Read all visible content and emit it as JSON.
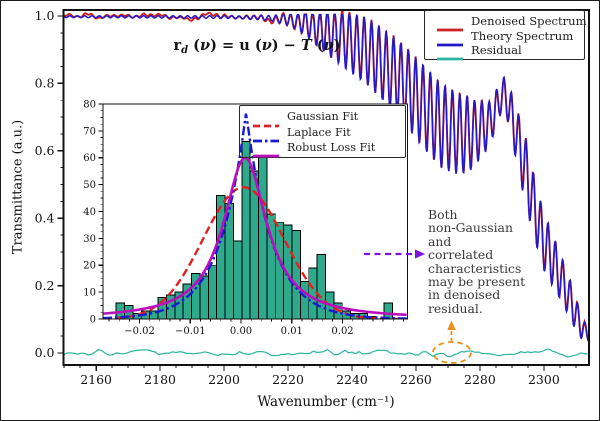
{
  "figure": {
    "background": "#ffffff",
    "border_color": "#1c1c1c"
  },
  "equation": {
    "tokens": [
      {
        "t": "r",
        "style": "bold"
      },
      {
        "t": "d",
        "style": "sub"
      },
      {
        "t": " (",
        "style": "plain"
      },
      {
        "t": "ν",
        "style": "italic"
      },
      {
        "t": ") = ",
        "style": "plain"
      },
      {
        "t": "u",
        "style": "bold"
      },
      {
        "t": " (",
        "style": "plain"
      },
      {
        "t": "ν",
        "style": "italic"
      },
      {
        "t": ") − ",
        "style": "plain"
      },
      {
        "t": "T",
        "style": "script"
      },
      {
        "t": " (",
        "style": "plain"
      },
      {
        "t": "ν",
        "style": "italic"
      },
      {
        "t": ")",
        "style": "plain"
      }
    ]
  },
  "annotation": {
    "lines": [
      "Both",
      "non-Gaussian",
      "and",
      "correlated",
      "characteristics",
      "may be present",
      "in denoised",
      "residual."
    ],
    "text_color": "#3a3a3a",
    "pointer_arrow_color": "#8012e0",
    "residual_arrow_color": "#e8901e",
    "ellipse_color": "#e8901e"
  },
  "chart_data": [
    {
      "id": "main-spectrum",
      "type": "line",
      "x_label": "Wavenumber (cm⁻¹)",
      "y_label": "Transmittance (a.u.)",
      "x_range": [
        2149.8,
        2314.1
      ],
      "y_range": [
        -0.0356,
        1.0178
      ],
      "grid": false,
      "x_major_ticks": [
        {
          "v": 2160,
          "label": "2160"
        },
        {
          "v": 2180,
          "label": "2180"
        },
        {
          "v": 2200,
          "label": "2200"
        },
        {
          "v": 2220,
          "label": "2220"
        },
        {
          "v": 2240,
          "label": "2240"
        },
        {
          "v": 2260,
          "label": "2260"
        },
        {
          "v": 2280,
          "label": "2280"
        },
        {
          "v": 2300,
          "label": "2300"
        }
      ],
      "x_minor_step": 5,
      "y_major_ticks": [
        {
          "v": 0,
          "label": "0.0"
        },
        {
          "v": 0.2,
          "label": "0.2"
        },
        {
          "v": 0.4,
          "label": "0.4"
        },
        {
          "v": 0.6,
          "label": "0.6"
        },
        {
          "v": 0.8,
          "label": "0.8"
        },
        {
          "v": 1,
          "label": "1.0"
        }
      ],
      "y_minor_step": 0.05,
      "legend": {
        "position": "upper-right",
        "items": [
          {
            "label": "Denoised Spectrum",
            "color": "#cc2222",
            "dash": "solid"
          },
          {
            "label": "Theory Spectrum",
            "color": "#2418c8",
            "dash": "solid"
          },
          {
            "label": "Residual",
            "color": "#2ab5a0",
            "dash": "solid"
          }
        ]
      },
      "series": {
        "theory": {
          "name": "Theory Spectrum",
          "color": "#2418c8",
          "width": 1.5,
          "period": 2.3,
          "peak_phase_x": 2287.5,
          "y_max_clamp": 1.004,
          "mean_keypoints": [
            [
              2149.8,
              0.998
            ],
            [
              2200,
              0.997
            ],
            [
              2212,
              0.995
            ],
            [
              2220,
              0.99
            ],
            [
              2226,
              0.978
            ],
            [
              2232,
              0.957
            ],
            [
              2238,
              0.928
            ],
            [
              2244,
              0.9
            ],
            [
              2250,
              0.855
            ],
            [
              2256,
              0.8
            ],
            [
              2262,
              0.735
            ],
            [
              2268,
              0.675
            ],
            [
              2273,
              0.65
            ],
            [
              2278,
              0.65
            ],
            [
              2283,
              0.68
            ],
            [
              2287.5,
              0.78
            ],
            [
              2290,
              0.7
            ],
            [
              2294,
              0.55
            ],
            [
              2297,
              0.43
            ],
            [
              2300,
              0.33
            ],
            [
              2303,
              0.27
            ],
            [
              2306,
              0.21
            ],
            [
              2309,
              0.14
            ],
            [
              2311.5,
              0.08
            ],
            [
              2314.1,
              0.05
            ]
          ],
          "amp_keypoints": [
            [
              2149.8,
              0.0025
            ],
            [
              2205,
              0.004
            ],
            [
              2215,
              0.008
            ],
            [
              2222,
              0.022
            ],
            [
              2228,
              0.05
            ],
            [
              2234,
              0.075
            ],
            [
              2240,
              0.09
            ],
            [
              2248,
              0.105
            ],
            [
              2256,
              0.115
            ],
            [
              2263,
              0.125
            ],
            [
              2270,
              0.125
            ],
            [
              2276,
              0.115
            ],
            [
              2281,
              0.08
            ],
            [
              2285,
              0.055
            ],
            [
              2287.5,
              0.04
            ],
            [
              2290,
              0.07
            ],
            [
              2294,
              0.1
            ],
            [
              2298,
              0.09
            ],
            [
              2302,
              0.08
            ],
            [
              2306,
              0.065
            ],
            [
              2309,
              0.055
            ],
            [
              2311,
              0.04
            ],
            [
              2314.1,
              0.015
            ]
          ]
        },
        "denoised": {
          "name": "Denoised Spectrum",
          "color": "#cc2222",
          "width": 1.9,
          "noise_amp_near": 0.011,
          "noise_amp_far": 0.005,
          "noise_split_x": 2238,
          "noise_step": 1.4,
          "seed": 20177
        },
        "residual": {
          "name": "Residual",
          "color": "#2ab5a0",
          "width": 1.2,
          "baseline": 0,
          "noise_amp": 0.0095,
          "noise_step": 1.1,
          "seed": 9041
        }
      }
    },
    {
      "id": "residual-histogram",
      "type": "histogram",
      "x_range": [
        -0.0272,
        0.0328
      ],
      "y_range": [
        0,
        80
      ],
      "grid": false,
      "x_major_ticks": [
        {
          "v": -0.02,
          "label": "−0.02"
        },
        {
          "v": -0.01,
          "label": "−0.01"
        },
        {
          "v": 0,
          "label": "0.00"
        },
        {
          "v": 0.01,
          "label": "0.01"
        },
        {
          "v": 0.02,
          "label": "0.02"
        }
      ],
      "x_minor_step": 0.002,
      "y_major_ticks": [
        {
          "v": 0,
          "label": "0"
        },
        {
          "v": 10,
          "label": "10"
        },
        {
          "v": 20,
          "label": "20"
        },
        {
          "v": 30,
          "label": "30"
        },
        {
          "v": 40,
          "label": "40"
        },
        {
          "v": 50,
          "label": "50"
        },
        {
          "v": 60,
          "label": "60"
        },
        {
          "v": 70,
          "label": "70"
        },
        {
          "v": 80,
          "label": "80"
        }
      ],
      "y_minor_step": 2.5,
      "bar_color": "#2fa98c",
      "bar_edge": "#000000",
      "bins": {
        "start": -0.0246,
        "width": 0.00165,
        "heights": [
          6,
          5,
          2,
          3,
          3,
          8,
          9,
          10,
          13,
          17,
          16,
          20,
          46,
          43,
          29,
          66,
          55,
          60,
          39,
          36,
          35,
          33,
          14,
          19,
          24,
          10,
          6,
          3,
          2,
          2,
          1,
          0,
          6
        ]
      },
      "legend": {
        "position": "upper-right",
        "items": [
          {
            "label": "Gaussian Fit",
            "color": "#e02020",
            "dash": "7 4"
          },
          {
            "label": "Laplace Fit",
            "color": "#1a1ad0",
            "dash": "9 3 2.5 3"
          },
          {
            "label": "Robust Loss Fit",
            "color": "#bc0fbc",
            "dash": "solid"
          }
        ]
      },
      "fits": [
        {
          "name": "Gaussian Fit",
          "type": "gaussian",
          "peak": 49,
          "mu": 0.0005,
          "sigma": 0.008,
          "color": "#e02020",
          "dash": "8 4",
          "width": 2.4
        },
        {
          "name": "Laplace Fit",
          "type": "laplace",
          "peak": 77,
          "mu": 0.001,
          "b": 0.0052,
          "color": "#1a1ad0",
          "dash": "9 3 2.5 3",
          "width": 2.4
        },
        {
          "name": "Robust Loss Fit",
          "type": "robust",
          "peak": 60,
          "mu": 0.0008,
          "s": 0.0052,
          "color": "#bc0fbc",
          "dash": "solid",
          "width": 2.6
        }
      ]
    }
  ]
}
